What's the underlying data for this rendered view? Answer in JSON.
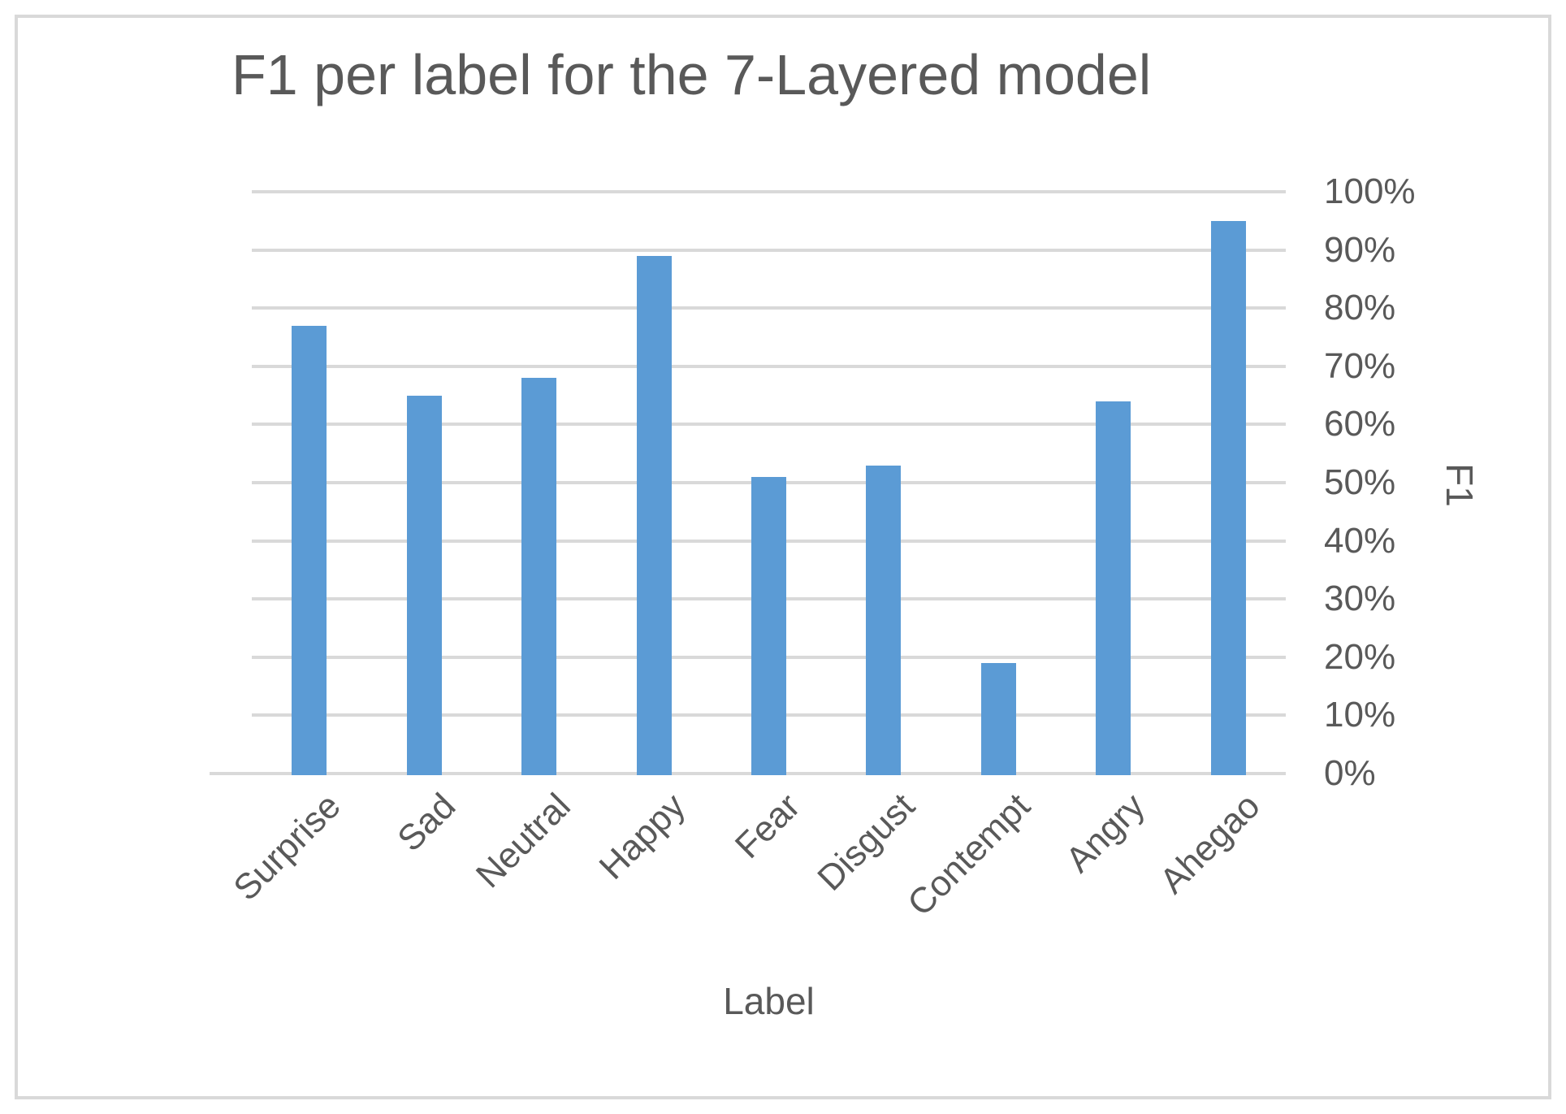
{
  "title": "F1 per label for the 7-Layered model",
  "chart_data": {
    "type": "bar",
    "title": "F1 per label for the 7-Layered model",
    "categories": [
      "Surprise",
      "Sad",
      "Neutral",
      "Happy",
      "Fear",
      "Disgust",
      "Contempt",
      "Angry",
      "Ahegao"
    ],
    "values": [
      77,
      65,
      68,
      89,
      51,
      53,
      19,
      64,
      95
    ],
    "unit": "%",
    "xlabel": "Label",
    "ylabel": "F1",
    "ylim": [
      0,
      100
    ],
    "ytick_step": 10,
    "ytick_labels": [
      "0%",
      "10%",
      "20%",
      "30%",
      "40%",
      "50%",
      "60%",
      "70%",
      "80%",
      "90%",
      "100%"
    ],
    "grid": true,
    "legend": "none",
    "y_axis_side": "right",
    "bar_color": "#5B9BD5",
    "gridline_color": "#D9D9D9",
    "text_color": "#595959",
    "border_color": "#D9D9D9"
  }
}
